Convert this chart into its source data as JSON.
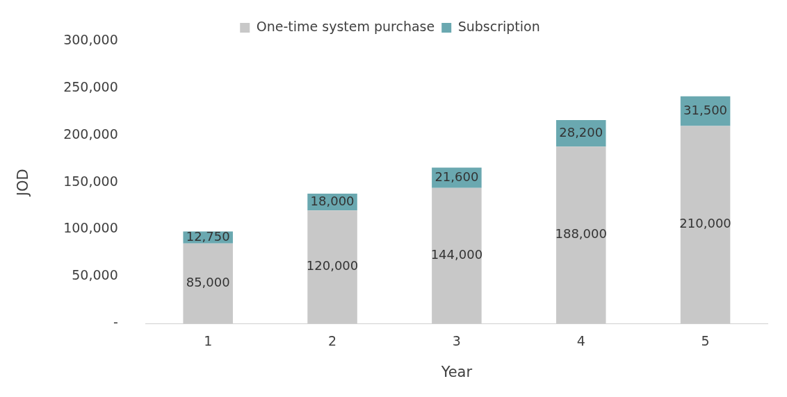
{
  "chart_data": {
    "type": "bar",
    "stacked": true,
    "xlabel": "Year",
    "ylabel": "JOD",
    "categories": [
      "1",
      "2",
      "3",
      "4",
      "5"
    ],
    "series": [
      {
        "name": "One-time system purchase",
        "color": "#c8c8c8",
        "values": [
          85000,
          120000,
          144000,
          188000,
          210000
        ],
        "value_labels": [
          "85,000",
          "120,000",
          "144,000",
          "188,000",
          "210,000"
        ]
      },
      {
        "name": "Subscription",
        "color": "#6aa8b0",
        "values": [
          12750,
          18000,
          21600,
          28200,
          31500
        ],
        "value_labels": [
          "12,750",
          "18,000",
          "21,600",
          "28,200",
          "31,500"
        ]
      }
    ],
    "ylim": [
      0,
      300000
    ],
    "yticks": [
      {
        "value": 0,
        "label": "-"
      },
      {
        "value": 50000,
        "label": "50,000"
      },
      {
        "value": 100000,
        "label": "100,000"
      },
      {
        "value": 150000,
        "label": "150,000"
      },
      {
        "value": 200000,
        "label": "200,000"
      },
      {
        "value": 250000,
        "label": "250,000"
      },
      {
        "value": 300000,
        "label": "300,000"
      }
    ],
    "grid": false,
    "legend": "top"
  }
}
